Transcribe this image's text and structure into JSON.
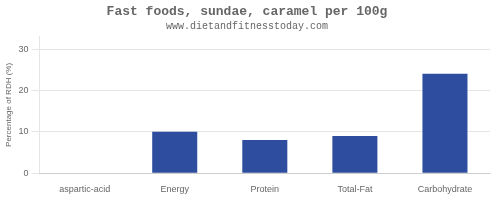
{
  "chart_data": {
    "type": "bar",
    "title": "Fast foods, sundae, caramel per 100g",
    "subtitle": "www.dietandfitnesstoday.com",
    "categories": [
      "aspartic-acid",
      "Energy",
      "Protein",
      "Total-Fat",
      "Carbohydrate"
    ],
    "values": [
      0,
      10,
      8,
      9,
      24
    ],
    "color": "#2e4d9e",
    "ylabel": "Percentage of RDH (%)",
    "ylim": [
      0,
      33
    ],
    "yticks": [
      0,
      10,
      20,
      30
    ],
    "grid": true
  }
}
